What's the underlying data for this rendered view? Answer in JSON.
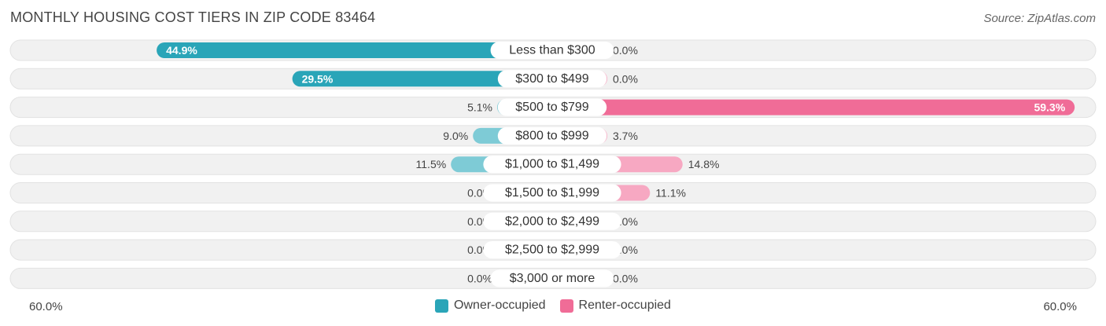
{
  "title": "MONTHLY HOUSING COST TIERS IN ZIP CODE 83464",
  "source": "Source: ZipAtlas.com",
  "colors": {
    "owner_dark": "#2aa5b8",
    "owner_light": "#7ecbd6",
    "renter_dark": "#f06c97",
    "renter_light": "#f7a8c2",
    "track": "#f1f1f1"
  },
  "axis": {
    "left_label": "60.0%",
    "right_label": "60.0%"
  },
  "chart_data": {
    "type": "bar",
    "orientation": "horizontal-diverging",
    "categories": [
      "Less than $300",
      "$300 to $499",
      "$500 to $799",
      "$800 to $999",
      "$1,000 to $1,499",
      "$1,500 to $1,999",
      "$2,000 to $2,499",
      "$2,500 to $2,999",
      "$3,000 or more"
    ],
    "series": [
      {
        "name": "Owner-occupied",
        "values": [
          44.9,
          29.5,
          5.1,
          9.0,
          11.5,
          0.0,
          0.0,
          0.0,
          0.0
        ],
        "labels": [
          "44.9%",
          "29.5%",
          "5.1%",
          "9.0%",
          "11.5%",
          "0.0%",
          "0.0%",
          "0.0%",
          "0.0%"
        ]
      },
      {
        "name": "Renter-occupied",
        "values": [
          0.0,
          0.0,
          59.3,
          3.7,
          14.8,
          11.1,
          0.0,
          0.0,
          0.0
        ],
        "labels": [
          "0.0%",
          "0.0%",
          "59.3%",
          "3.7%",
          "14.8%",
          "11.1%",
          "0.0%",
          "0.0%",
          "0.0%"
        ]
      }
    ],
    "xlim": [
      -60,
      60
    ],
    "legend_position": "bottom-center"
  }
}
